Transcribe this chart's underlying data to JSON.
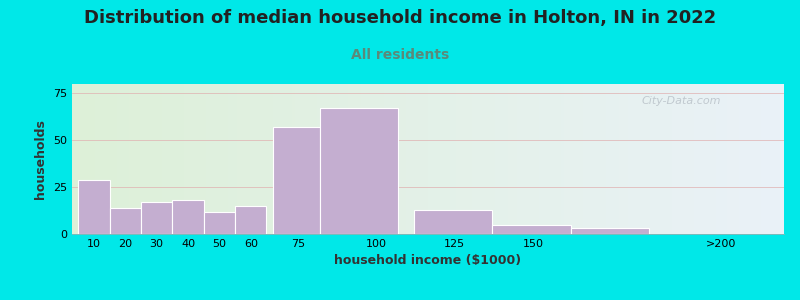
{
  "title": "Distribution of median household income in Holton, IN in 2022",
  "subtitle": "All residents",
  "xlabel": "household income ($1000)",
  "ylabel": "households",
  "bar_color": "#c4aed0",
  "background_outer": "#00e8e8",
  "background_inner_left": "#ddf0d8",
  "background_inner_right": "#eaf2f8",
  "values": [
    29,
    14,
    17,
    18,
    12,
    15,
    57,
    67,
    13,
    5,
    3
  ],
  "left_edges": [
    5,
    15,
    25,
    35,
    45,
    55,
    67,
    82,
    112,
    137,
    162
  ],
  "widths": [
    10,
    10,
    10,
    10,
    10,
    10,
    15,
    25,
    25,
    25,
    25
  ],
  "xtick_positions": [
    10,
    20,
    30,
    40,
    50,
    60,
    75,
    100,
    125,
    150,
    210
  ],
  "xtick_labels": [
    "10",
    "20",
    "30",
    "40",
    "50",
    "60",
    "75",
    "100",
    "125",
    "150",
    ">200"
  ],
  "ylim": [
    0,
    80
  ],
  "yticks": [
    0,
    25,
    50,
    75
  ],
  "xlim": [
    3,
    230
  ],
  "watermark": "City-Data.com",
  "title_fontsize": 13,
  "subtitle_fontsize": 10,
  "subtitle_color": "#5a8a7a",
  "axis_label_fontsize": 9,
  "axis_label_color": "#333333"
}
